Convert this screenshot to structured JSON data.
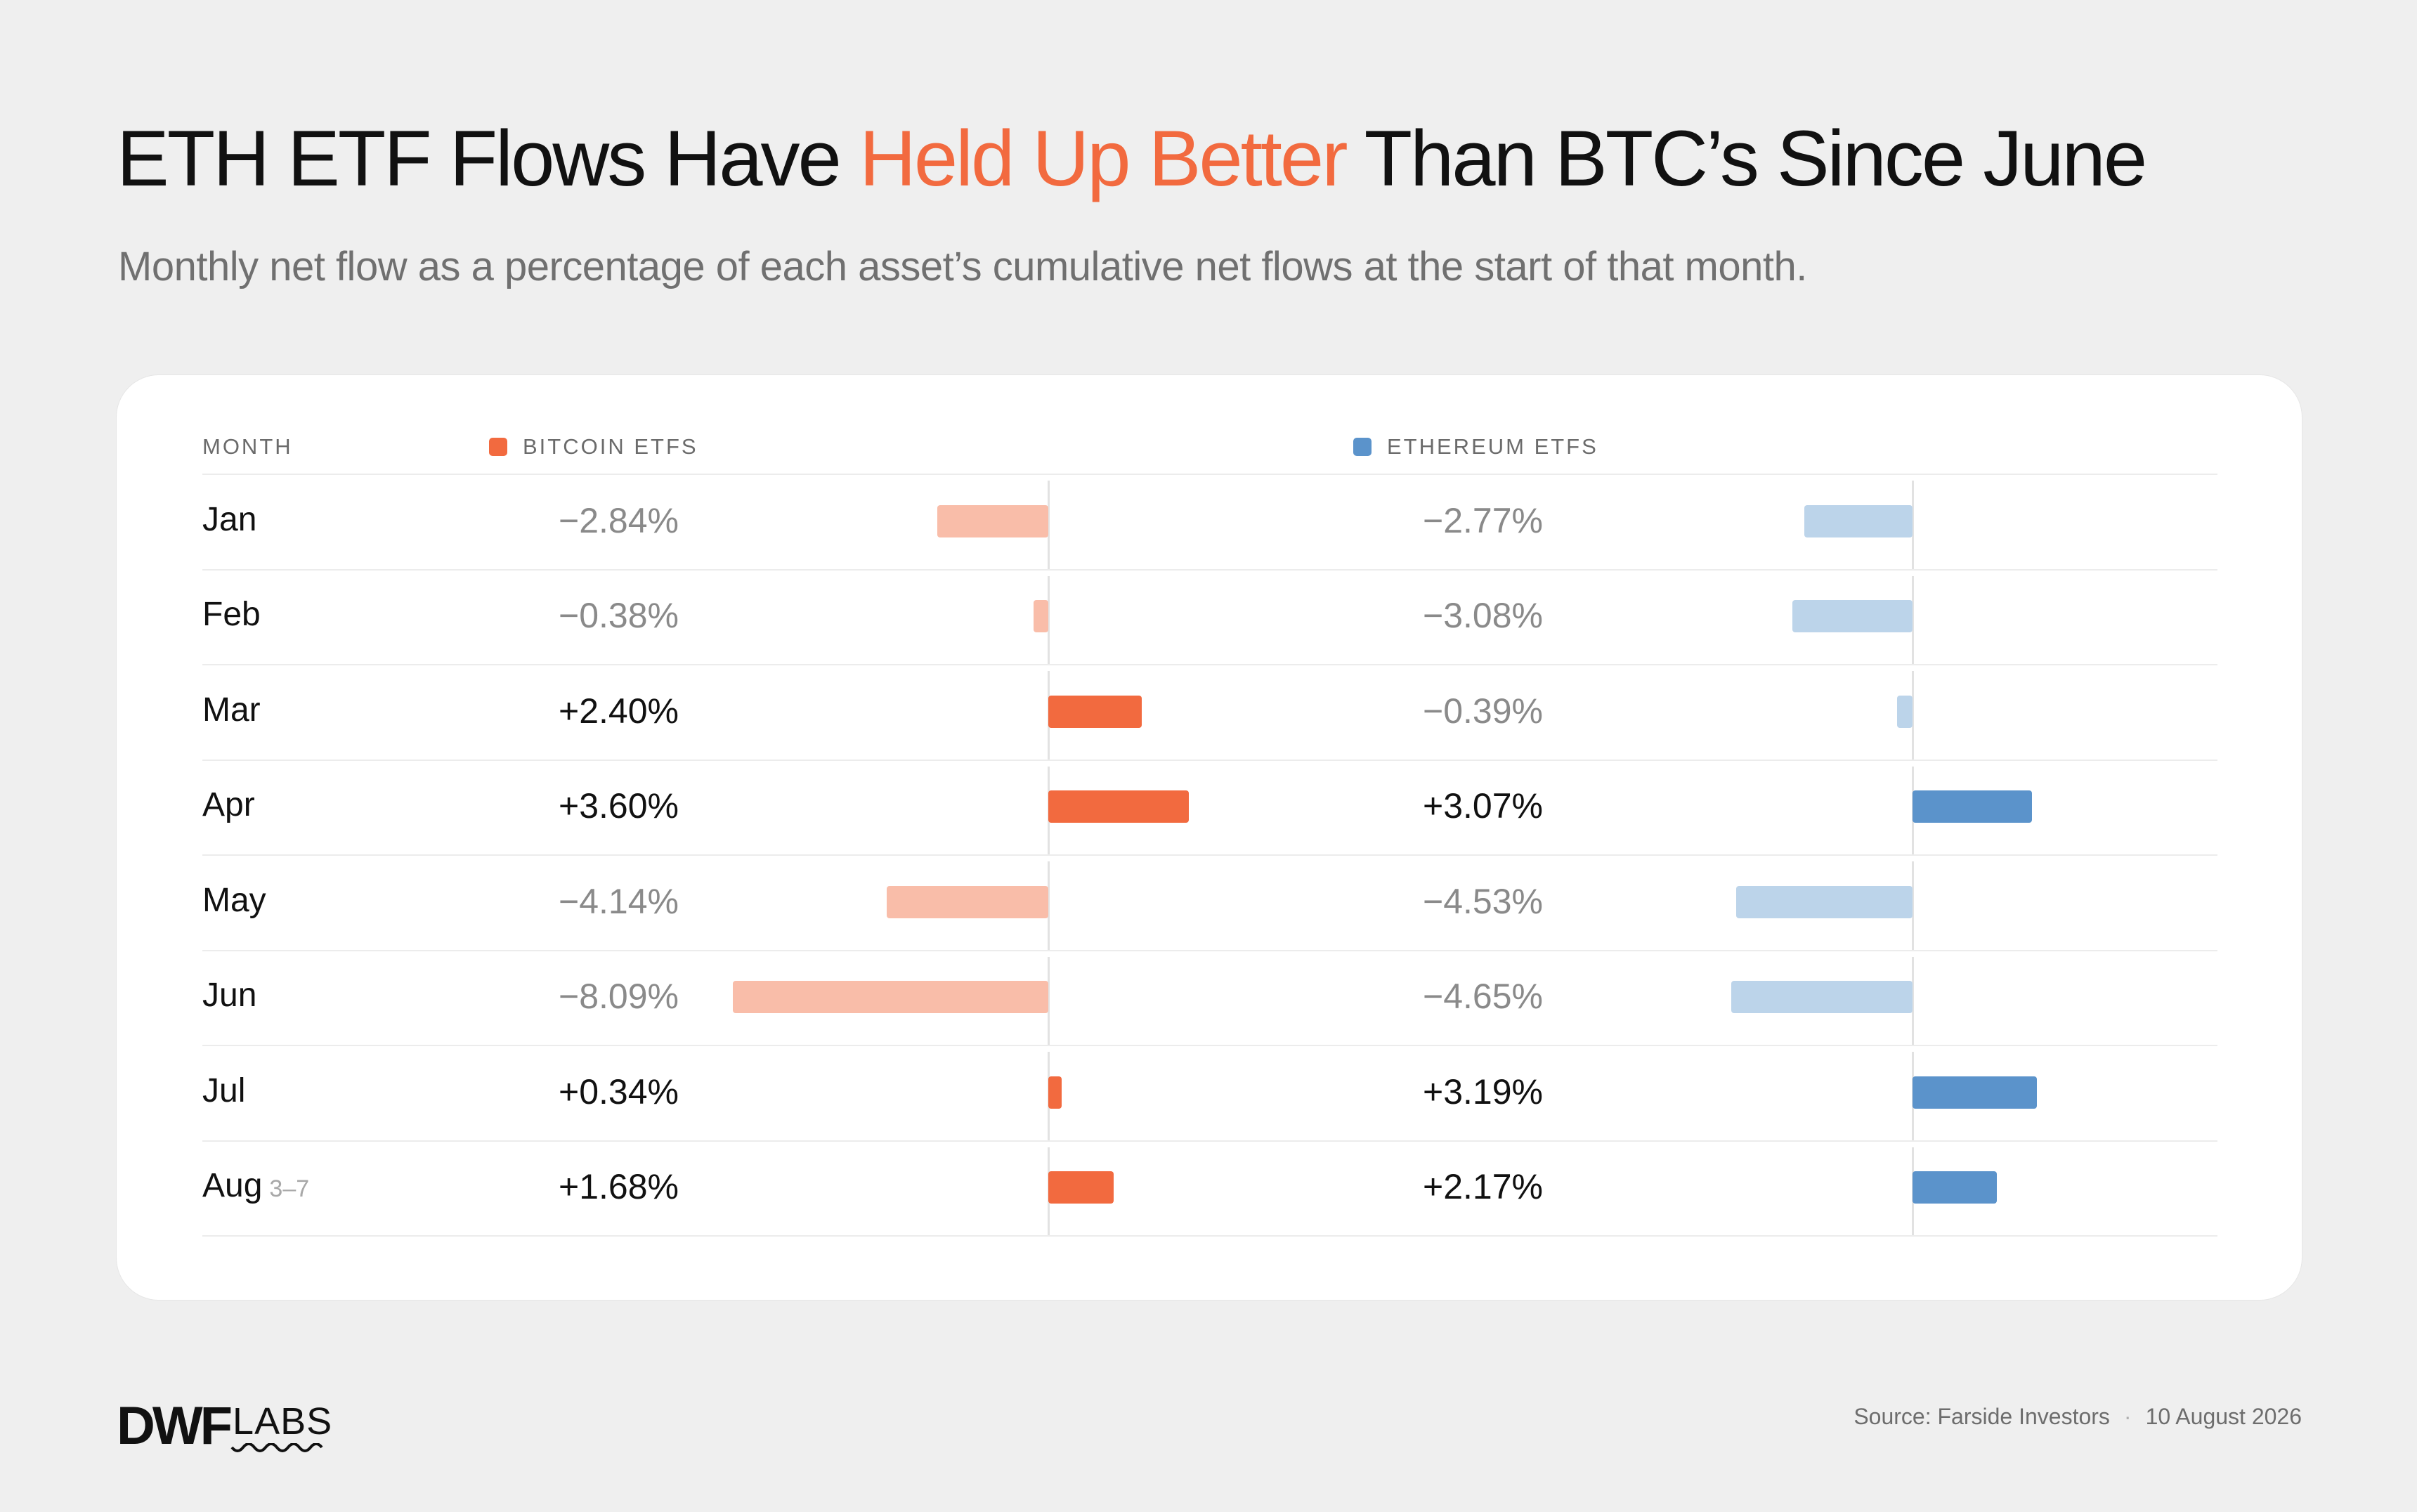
{
  "title": {
    "pre": "ETH ETF Flows Have ",
    "highlight": "Held Up Better",
    "post": " Than BTC’s Since June"
  },
  "subtitle": "Monthly net flow as a percentage of each asset’s cumulative net flows at the start of that month.",
  "colors": {
    "btc_positive": "#f26a3f",
    "btc_negative": "#f9bda9",
    "eth_positive": "#5b93cb",
    "eth_negative": "#bcd4ea",
    "highlight": "#f26a3f"
  },
  "chart_data": {
    "type": "bar",
    "orientation": "horizontal-diverging",
    "columns": {
      "month": "MONTH",
      "btc": "BITCOIN ETFS",
      "eth": "ETHEREUM ETFS"
    },
    "categories": [
      "Jan",
      "Feb",
      "Mar",
      "Apr",
      "May",
      "Jun",
      "Jul",
      "Aug"
    ],
    "category_notes": [
      "",
      "",
      "",
      "",
      "",
      "",
      "",
      "3–7"
    ],
    "series": [
      {
        "name": "BITCOIN ETFS",
        "values": [
          -2.84,
          -0.38,
          2.4,
          3.6,
          -4.14,
          -8.09,
          0.34,
          1.68
        ],
        "labels": [
          "−2.84%",
          "−0.38%",
          "+2.40%",
          "+3.60%",
          "−4.14%",
          "−8.09%",
          "+0.34%",
          "+1.68%"
        ]
      },
      {
        "name": "ETHEREUM ETFS",
        "values": [
          -2.77,
          -3.08,
          -0.39,
          3.07,
          -4.53,
          -4.65,
          3.19,
          2.17
        ],
        "labels": [
          "−2.77%",
          "−3.08%",
          "−0.39%",
          "+3.07%",
          "−4.53%",
          "−4.65%",
          "+3.19%",
          "+2.17%"
        ]
      }
    ]
  },
  "footer": {
    "logo_main": "DWF",
    "logo_sub": "LABS",
    "source": "Source: Farside Investors",
    "separator": "·",
    "date": "10 August 2026"
  }
}
